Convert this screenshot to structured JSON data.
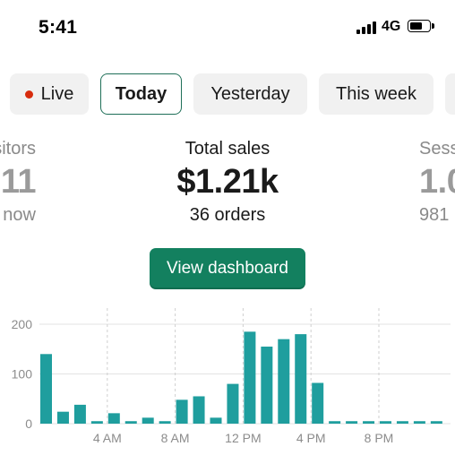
{
  "status_bar": {
    "time": "5:41",
    "network": "4G",
    "signal_bars": 4,
    "battery_level": 0.7
  },
  "tabs": [
    {
      "label": "Live",
      "selected": false,
      "indicator_color": "#d72c0d"
    },
    {
      "label": "Today",
      "selected": true
    },
    {
      "label": "Yesterday",
      "selected": false
    },
    {
      "label": "This week",
      "selected": false
    }
  ],
  "metrics": {
    "left": {
      "title": "sitors",
      "value": "11",
      "sub": "now"
    },
    "center": {
      "title": "Total sales",
      "value": "$1.21k",
      "sub": "36 orders"
    },
    "right": {
      "title": "Sess",
      "value": "1.0",
      "sub": "981"
    }
  },
  "cta": {
    "label": "View dashboard"
  },
  "colors": {
    "accent": "#13805f",
    "bar": "#1f9e9e",
    "selected_tab_border": "#1f6f58"
  },
  "chart_data": {
    "type": "bar",
    "categories": [
      "12 AM",
      "1 AM",
      "2 AM",
      "3 AM",
      "4 AM",
      "5 AM",
      "6 AM",
      "7 AM",
      "8 AM",
      "9 AM",
      "10 AM",
      "11 AM",
      "12 PM",
      "1 PM",
      "2 PM",
      "3 PM",
      "4 PM",
      "5 PM",
      "6 PM",
      "7 PM",
      "8 PM",
      "9 PM",
      "10 PM",
      "11 PM"
    ],
    "values": [
      140,
      24,
      38,
      5,
      21,
      5,
      12,
      5,
      48,
      55,
      12,
      80,
      185,
      155,
      170,
      180,
      82,
      5,
      5,
      5,
      5,
      5,
      5,
      5
    ],
    "x_tick_labels": [
      "4 AM",
      "8 AM",
      "12 PM",
      "4 PM",
      "8 PM"
    ],
    "y_tick_labels": [
      "0",
      "100",
      "200"
    ],
    "ylim": [
      0,
      200
    ],
    "grid": true
  }
}
